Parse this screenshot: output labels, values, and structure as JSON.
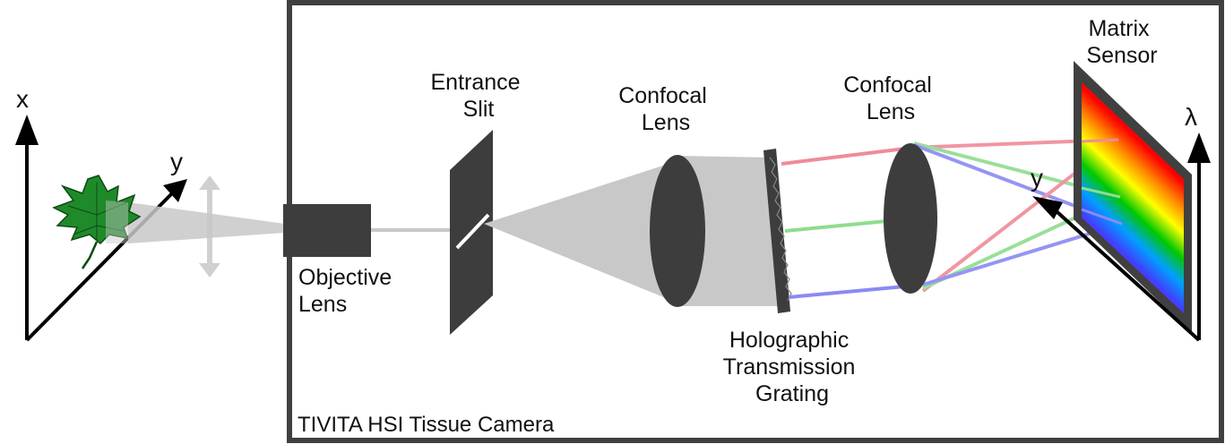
{
  "scene_axes": {
    "x": "x",
    "y": "y"
  },
  "camera": {
    "title": "TIVITA HSI Tissue Camera"
  },
  "components": {
    "objective_lens": [
      "Objective",
      "Lens"
    ],
    "entrance_slit": [
      "Entrance",
      "Slit"
    ],
    "confocal_lens_1": [
      "Confocal",
      "Lens"
    ],
    "grating": [
      "Holographic",
      "Transmission",
      "Grating"
    ],
    "confocal_lens_2": [
      "Confocal",
      "Lens"
    ],
    "matrix_sensor": [
      "Matrix",
      "Sensor"
    ]
  },
  "sensor_axes": {
    "lambda": "λ",
    "y": "y"
  },
  "colors": {
    "frame": "#404040",
    "component": "#3d3d3d",
    "beam": "#c8c8c8",
    "leaf": "#1f8a2a",
    "ray_red": "#f08a9a",
    "ray_green": "#8fdc8f",
    "ray_blue": "#8a8af2"
  }
}
